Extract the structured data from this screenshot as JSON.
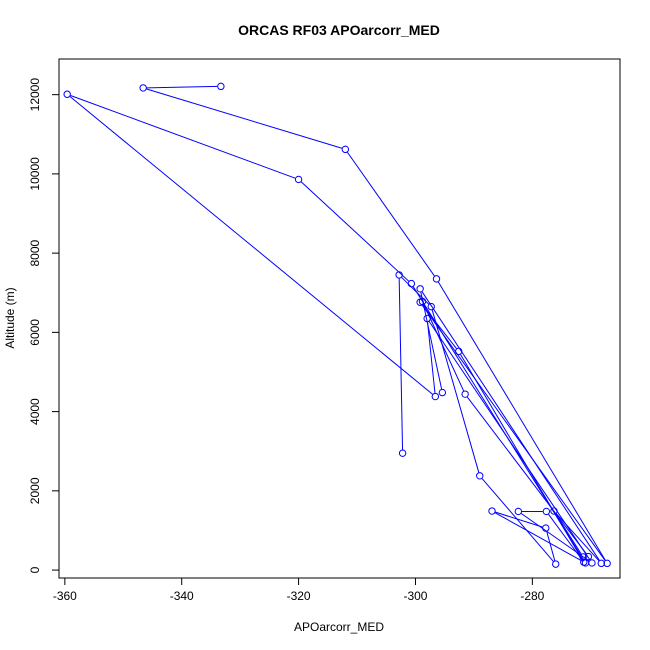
{
  "chart_data": {
    "type": "line",
    "title": "ORCAS RF03 APOarcorr_MED",
    "xlabel": "APOarcorr_MED",
    "ylabel": "Altitude (m)",
    "xlim": [
      -361,
      -265
    ],
    "ylim": [
      -200,
      12900
    ],
    "xticks": [
      -360,
      -340,
      -320,
      -300,
      -280
    ],
    "yticks": [
      0,
      2000,
      4000,
      6000,
      8000,
      10000,
      12000
    ],
    "xtick_labels": [
      "-360",
      "-340",
      "-320",
      "-300",
      "-280"
    ],
    "ytick_labels": [
      "0",
      "2000",
      "4000",
      "6000",
      "8000",
      "10000",
      "12000"
    ],
    "legend": "none",
    "grid": false,
    "series": [
      {
        "color": "#0000ff",
        "marker": "open-circle",
        "points": [
          [
            -302.2,
            2950
          ],
          [
            -302.8,
            7450
          ],
          [
            -297.3,
            6650
          ],
          [
            -289.0,
            2380
          ],
          [
            -276.0,
            150
          ],
          [
            -277.7,
            1060
          ],
          [
            -286.9,
            1490
          ],
          [
            -270.9,
            180
          ],
          [
            -300.7,
            7230
          ],
          [
            -320.0,
            9860
          ],
          [
            -359.6,
            12010
          ],
          [
            -296.6,
            4380
          ],
          [
            -298.0,
            6350
          ],
          [
            -269.8,
            180
          ],
          [
            -282.4,
            1480
          ],
          [
            -277.6,
            1480
          ],
          [
            -271.2,
            200
          ],
          [
            -292.6,
            5520
          ],
          [
            -299.2,
            6760
          ],
          [
            -267.2,
            170
          ],
          [
            -296.4,
            7350
          ],
          [
            -312.0,
            10620
          ],
          [
            -346.6,
            12170
          ],
          [
            -333.3,
            12210
          ]
        ]
      },
      {
        "color": "#0000ff",
        "marker": "open-circle",
        "points": [
          [
            -295.4,
            4480
          ],
          [
            -299.2,
            7100
          ],
          [
            -268.2,
            170
          ],
          [
            -276.3,
            1490
          ],
          [
            -271.3,
            330
          ],
          [
            -270.4,
            340
          ],
          [
            -291.5,
            4440
          ],
          [
            -298.8,
            6780
          ]
        ]
      }
    ]
  }
}
